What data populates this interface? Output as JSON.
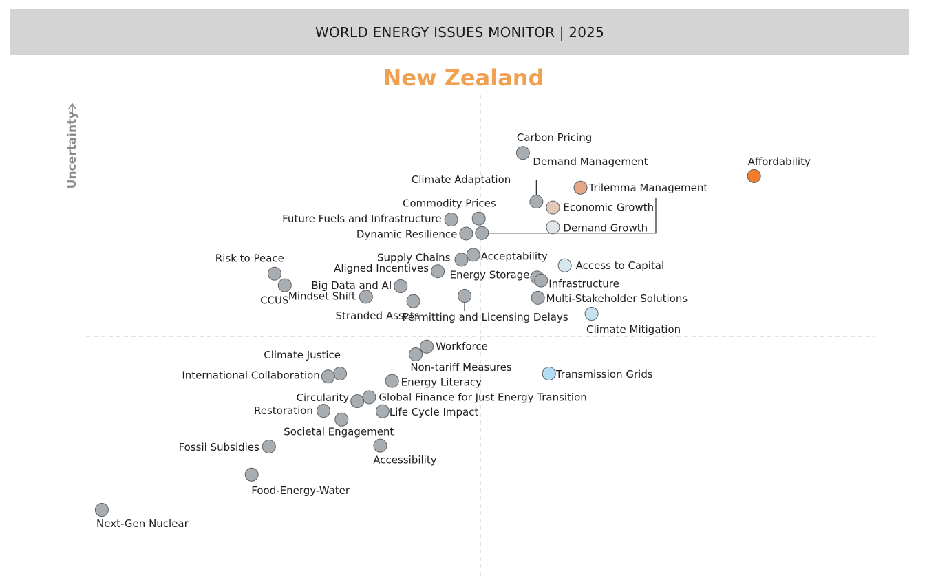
{
  "header": {
    "title": "WORLD ENERGY ISSUES MONITOR | 2025"
  },
  "country": "New Zealand",
  "chart_data": {
    "type": "scatter",
    "title": "WORLD ENERGY ISSUES MONITOR | 2025",
    "subtitle": "New Zealand",
    "xlabel": "",
    "ylabel": "Uncertainty",
    "xlim": [
      0,
      1
    ],
    "ylim": [
      0,
      1
    ],
    "quadrant_lines": {
      "x": 0.5,
      "y": 0.5
    },
    "grid": false,
    "colors": {
      "default": "#a8adb1",
      "affordability": "#f57c2a",
      "trilemma": "#e8a888",
      "economic_growth": "#e3c8b8",
      "demand_growth": "#e2e4e6",
      "access_capital": "#d8e6f0",
      "climate_mitigation": "#c6e2f2",
      "transmission": "#b4dcf2"
    },
    "points": [
      {
        "name": "Carbon Pricing",
        "x": 0.554,
        "y": 0.88,
        "color": "#a8adb1"
      },
      {
        "name": "Affordability",
        "x": 0.847,
        "y": 0.832,
        "color": "#f57c2a"
      },
      {
        "name": "Trilemma Management",
        "x": 0.627,
        "y": 0.808,
        "color": "#e8a888"
      },
      {
        "name": "Demand Management",
        "x": 0.571,
        "y": 0.779,
        "color": "#a8adb1"
      },
      {
        "name": "Economic Growth",
        "x": 0.592,
        "y": 0.767,
        "color": "#e3c8b8"
      },
      {
        "name": "Commodity Prices",
        "x": 0.498,
        "y": 0.744,
        "color": "#a8adb1"
      },
      {
        "name": "Future Fuels and Infrastructure",
        "x": 0.463,
        "y": 0.742,
        "color": "#a8adb1"
      },
      {
        "name": "Demand Growth",
        "x": 0.592,
        "y": 0.726,
        "color": "#e2e4e6"
      },
      {
        "name": "Dynamic Resilience",
        "x": 0.482,
        "y": 0.713,
        "color": "#a8adb1"
      },
      {
        "name": "Climate Adaptation",
        "x": 0.502,
        "y": 0.714,
        "color": "#a8adb1"
      },
      {
        "name": "Acceptability",
        "x": 0.491,
        "y": 0.669,
        "color": "#a8adb1"
      },
      {
        "name": "Supply Chains",
        "x": 0.476,
        "y": 0.659,
        "color": "#a8adb1"
      },
      {
        "name": "Access to Capital",
        "x": 0.607,
        "y": 0.647,
        "color": "#d8e6f0"
      },
      {
        "name": "Aligned Incentives",
        "x": 0.446,
        "y": 0.635,
        "color": "#a8adb1"
      },
      {
        "name": "Risk to Peace",
        "x": 0.239,
        "y": 0.63,
        "color": "#a8adb1"
      },
      {
        "name": "Energy Storage",
        "x": 0.572,
        "y": 0.622,
        "color": "#a8adb1"
      },
      {
        "name": "Infrastructure",
        "x": 0.577,
        "y": 0.616,
        "color": "#a8adb1"
      },
      {
        "name": "Big Data and AI",
        "x": 0.399,
        "y": 0.604,
        "color": "#a8adb1"
      },
      {
        "name": "CCUS",
        "x": 0.252,
        "y": 0.606,
        "color": "#a8adb1"
      },
      {
        "name": "Permitting and Licensing Delays",
        "x": 0.48,
        "y": 0.584,
        "color": "#a8adb1"
      },
      {
        "name": "Mindset Shift",
        "x": 0.355,
        "y": 0.582,
        "color": "#a8adb1"
      },
      {
        "name": "Multi-Stakeholder Solutions",
        "x": 0.573,
        "y": 0.58,
        "color": "#a8adb1"
      },
      {
        "name": "Stranded Assets",
        "x": 0.415,
        "y": 0.573,
        "color": "#a8adb1"
      },
      {
        "name": "Climate Mitigation",
        "x": 0.641,
        "y": 0.547,
        "color": "#c6e2f2"
      },
      {
        "name": "Workforce",
        "x": 0.432,
        "y": 0.479,
        "color": "#a8adb1"
      },
      {
        "name": "Non-tariff Measures",
        "x": 0.418,
        "y": 0.463,
        "color": "#a8adb1"
      },
      {
        "name": "Transmission Grids",
        "x": 0.587,
        "y": 0.423,
        "color": "#b4dcf2"
      },
      {
        "name": "Climate Justice",
        "x": 0.322,
        "y": 0.423,
        "color": "#a8adb1"
      },
      {
        "name": "International Collaboration",
        "x": 0.307,
        "y": 0.417,
        "color": "#a8adb1"
      },
      {
        "name": "Energy Literacy",
        "x": 0.388,
        "y": 0.408,
        "color": "#a8adb1"
      },
      {
        "name": "Global Finance for Just Energy Transition",
        "x": 0.359,
        "y": 0.374,
        "color": "#a8adb1"
      },
      {
        "name": "Circularity",
        "x": 0.344,
        "y": 0.366,
        "color": "#a8adb1"
      },
      {
        "name": "Restoration",
        "x": 0.301,
        "y": 0.346,
        "color": "#a8adb1"
      },
      {
        "name": "Life Cycle Impact",
        "x": 0.376,
        "y": 0.345,
        "color": "#a8adb1"
      },
      {
        "name": "Societal Engagement",
        "x": 0.324,
        "y": 0.328,
        "color": "#a8adb1"
      },
      {
        "name": "Fossil Subsidies",
        "x": 0.232,
        "y": 0.272,
        "color": "#a8adb1"
      },
      {
        "name": "Accessibility",
        "x": 0.373,
        "y": 0.274,
        "color": "#a8adb1"
      },
      {
        "name": "Food-Energy-Water",
        "x": 0.21,
        "y": 0.214,
        "color": "#a8adb1"
      },
      {
        "name": "Next-Gen Nuclear",
        "x": 0.02,
        "y": 0.141,
        "color": "#a8adb1"
      }
    ]
  }
}
